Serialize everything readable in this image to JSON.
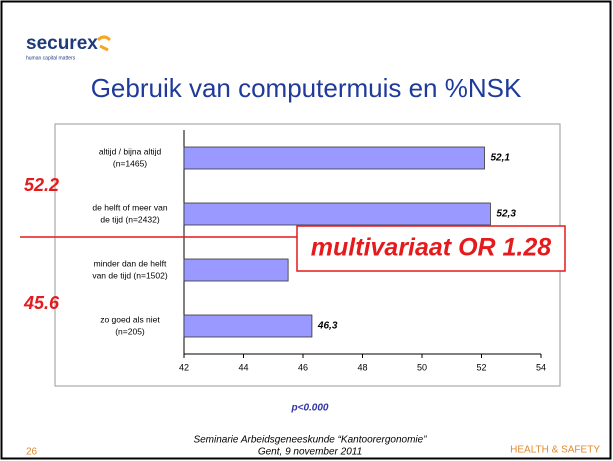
{
  "logo": {
    "name": "securex",
    "tagline": "human capital matters"
  },
  "chart_data": {
    "type": "bar",
    "orientation": "horizontal",
    "title": "Gebruik van computermuis en %NSK",
    "categories": [
      [
        "altijd / bijna altijd",
        "(n=1465)"
      ],
      [
        "de helft of meer van",
        "de tijd (n=2432)"
      ],
      [
        "minder dan de helft",
        "van de tijd (n=1502)"
      ],
      [
        "zo goed als niet",
        "(n=205)"
      ]
    ],
    "values": [
      52.1,
      52.3,
      45.5,
      46.3
    ],
    "value_labels": [
      "52,1",
      "52,3",
      null,
      "46,3"
    ],
    "color": "#9999ff",
    "xlim": [
      42,
      54
    ],
    "xticks": [
      42,
      44,
      46,
      48,
      50,
      52,
      54
    ],
    "annotations": {
      "upper": "52.2",
      "lower": "45.6",
      "box": "multivariaat OR 1.28",
      "p": "p<0.000"
    }
  },
  "footer": {
    "line1": "Seminarie Arbeidsgeneeskunde “Kantoorergonomie”",
    "line2": "Gent, 9 november 2011",
    "page": "26",
    "brand": "HEALTH & SAFETY"
  }
}
